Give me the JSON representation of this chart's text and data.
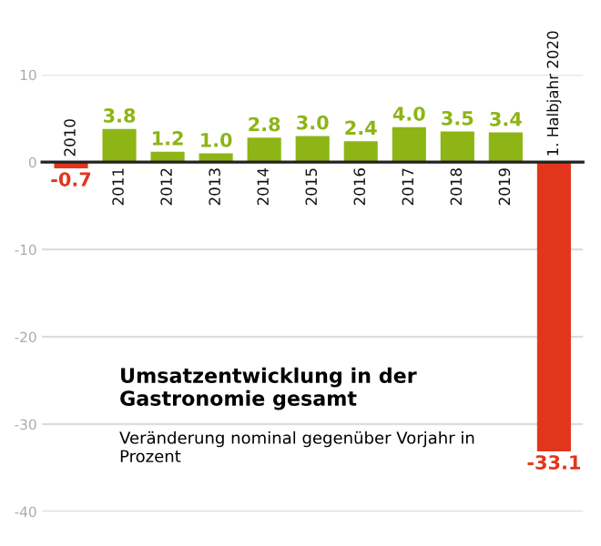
{
  "chart_data": {
    "type": "bar",
    "title": "Umsatzentwicklung in der Gastronomie gesamt",
    "subtitle": "Veränderung nominal gegenüber Vorjahr in Prozent",
    "categories": [
      "2010",
      "2011",
      "2012",
      "2013",
      "2014",
      "2015",
      "2016",
      "2017",
      "2018",
      "2019",
      "1. Halbjahr 2020"
    ],
    "values": [
      -0.7,
      3.8,
      1.2,
      1.0,
      2.8,
      3.0,
      2.4,
      4.0,
      3.5,
      3.4,
      -33.1
    ],
    "colors": [
      "#e2361c",
      "#8cb515",
      "#8cb515",
      "#8cb515",
      "#8cb515",
      "#8cb515",
      "#8cb515",
      "#8cb515",
      "#8cb515",
      "#8cb515",
      "#e2361c"
    ],
    "value_labels": [
      "-0.7",
      "3.8",
      "1.2",
      "1.0",
      "2.8",
      "3.0",
      "2.4",
      "4.0",
      "3.5",
      "3.4",
      "-33.1"
    ],
    "ylim": [
      -40,
      10
    ],
    "yticks": [
      10,
      0,
      {
        "value": -10,
        "label": "-10"
      },
      {
        "value": -20,
        "label": "-20"
      },
      {
        "value": -30,
        "label": "-30"
      },
      {
        "value": -40,
        "label": "-40"
      }
    ],
    "grid": "y"
  }
}
